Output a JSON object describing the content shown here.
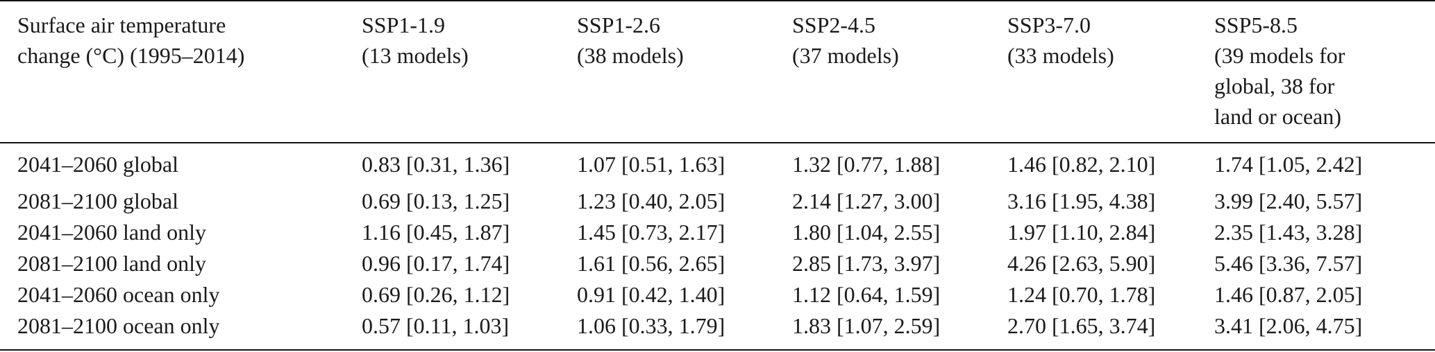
{
  "header": {
    "first_line1": "Surface air temperature",
    "first_line2": "change (°C) (1995–2014)",
    "scenarios": [
      {
        "name": "SSP1-1.9",
        "models_line1": "(13 models)",
        "models_line2": "",
        "models_line3": "",
        "models_line4": ""
      },
      {
        "name": "SSP1-2.6",
        "models_line1": "(38 models)",
        "models_line2": "",
        "models_line3": "",
        "models_line4": ""
      },
      {
        "name": "SSP2-4.5",
        "models_line1": "(37 models)",
        "models_line2": "",
        "models_line3": "",
        "models_line4": ""
      },
      {
        "name": "SSP3-7.0",
        "models_line1": "(33 models)",
        "models_line2": "",
        "models_line3": "",
        "models_line4": ""
      },
      {
        "name": "SSP5-8.5",
        "models_line1": "(39 models for",
        "models_line2": "global, 38 for",
        "models_line3": "land or ocean)",
        "models_line4": ""
      }
    ]
  },
  "rows": [
    {
      "label": "2041–2060 global",
      "values": [
        "0.83 [0.31, 1.36]",
        "1.07 [0.51, 1.63]",
        "1.32 [0.77, 1.88]",
        "1.46 [0.82, 2.10]",
        "1.74 [1.05, 2.42]"
      ]
    },
    {
      "label": "2081–2100 global",
      "values": [
        "0.69 [0.13, 1.25]",
        "1.23 [0.40, 2.05]",
        "2.14 [1.27, 3.00]",
        "3.16 [1.95, 4.38]",
        "3.99 [2.40, 5.57]"
      ]
    },
    {
      "label": "2041–2060 land only",
      "values": [
        "1.16 [0.45, 1.87]",
        "1.45 [0.73, 2.17]",
        "1.80 [1.04, 2.55]",
        "1.97 [1.10, 2.84]",
        "2.35 [1.43, 3.28]"
      ]
    },
    {
      "label": "2081–2100 land only",
      "values": [
        "0.96 [0.17, 1.74]",
        "1.61 [0.56, 2.65]",
        "2.85 [1.73, 3.97]",
        "4.26 [2.63, 5.90]",
        "5.46 [3.36, 7.57]"
      ]
    },
    {
      "label": "2041–2060 ocean only",
      "values": [
        "0.69 [0.26, 1.12]",
        "0.91 [0.42, 1.40]",
        "1.12 [0.64, 1.59]",
        "1.24 [0.70, 1.78]",
        "1.46 [0.87, 2.05]"
      ]
    },
    {
      "label": "2081–2100 ocean only",
      "values": [
        "0.57 [0.11, 1.03]",
        "1.06 [0.33, 1.79]",
        "1.83 [1.07, 2.59]",
        "2.70 [1.65, 3.74]",
        "3.41 [2.06, 4.75]"
      ]
    }
  ]
}
